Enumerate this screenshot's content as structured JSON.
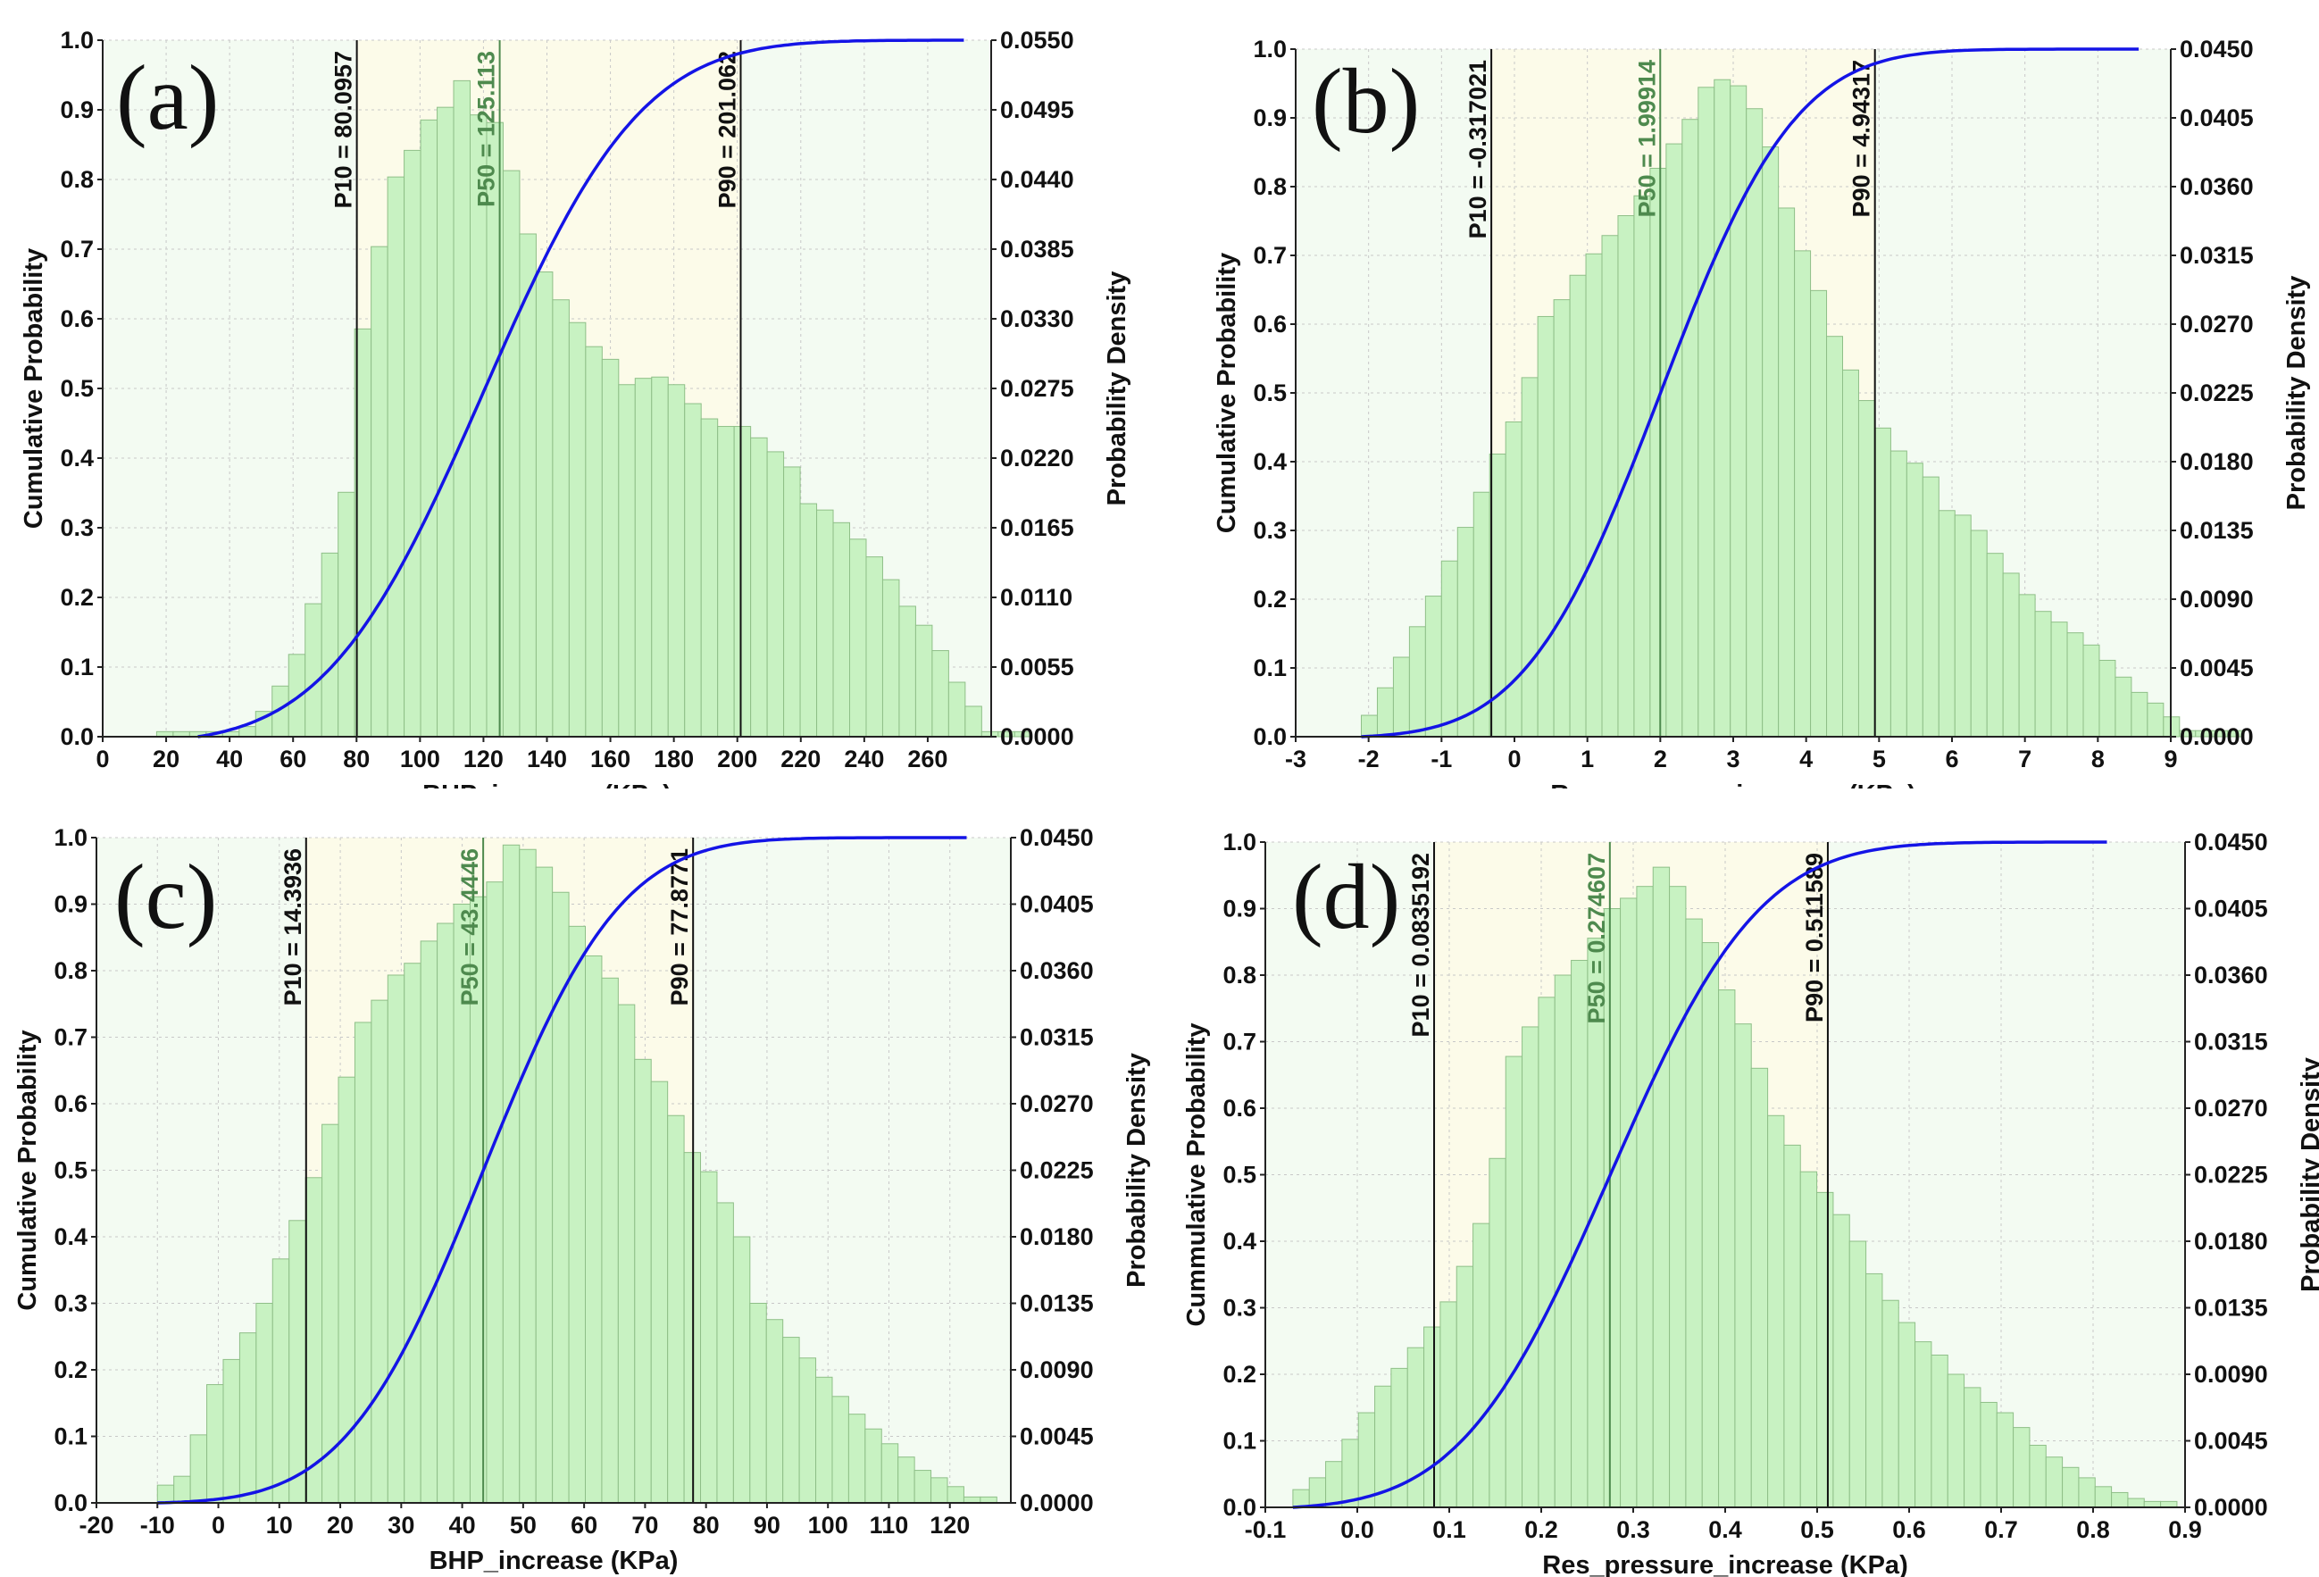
{
  "chart_data": [
    {
      "id": "a",
      "type": "bar",
      "panel_label": "(a)",
      "xlabel": "BHP_increase (KPa)",
      "ylabel_left": "Cumulative Probability",
      "ylabel_right": "Probability Density",
      "xlim": [
        0,
        280
      ],
      "x_ticks": [
        0,
        20,
        40,
        60,
        80,
        100,
        120,
        140,
        160,
        180,
        200,
        220,
        240,
        260
      ],
      "x_tick_labels": [
        "0",
        "20",
        "40",
        "60",
        "80",
        "100",
        "120",
        "140",
        "160",
        "180",
        "200",
        "220",
        "240",
        "260"
      ],
      "ylim_left": [
        0,
        1
      ],
      "y_left_tick_labels": [
        "0.0",
        "0.1",
        "0.2",
        "0.3",
        "0.4",
        "0.5",
        "0.6",
        "0.7",
        "0.8",
        "0.9",
        "1.0"
      ],
      "ylim_right": [
        0,
        0.055
      ],
      "y_right_tick_labels": [
        "0.0000",
        "0.0055",
        "0.0110",
        "0.0165",
        "0.0220",
        "0.0275",
        "0.0330",
        "0.0385",
        "0.0440",
        "0.0495",
        "0.0550"
      ],
      "bin_start": 17,
      "bin_width": 5.2,
      "bar_values": [
        0.0004,
        0.0004,
        0.0004,
        0.0004,
        0.0004,
        0.0008,
        0.002,
        0.004,
        0.0065,
        0.0105,
        0.0145,
        0.0193,
        0.0322,
        0.0387,
        0.0442,
        0.0463,
        0.0487,
        0.0497,
        0.0518,
        0.0491,
        0.0485,
        0.0447,
        0.0397,
        0.0367,
        0.0345,
        0.0327,
        0.0308,
        0.0298,
        0.0278,
        0.0283,
        0.0284,
        0.0278,
        0.0263,
        0.0251,
        0.0245,
        0.0245,
        0.0236,
        0.0225,
        0.0213,
        0.0184,
        0.0179,
        0.0169,
        0.0156,
        0.0142,
        0.0124,
        0.0103,
        0.0088,
        0.0068,
        0.0043,
        0.0024,
        0.0004,
        0.0004,
        0.0004
      ],
      "cdf": {
        "center": 120,
        "scale": 55,
        "x_start": 30,
        "x_end": 270
      },
      "reference_lines": [
        {
          "label": "P10 = 80.0957",
          "x": 80.0957,
          "color": "#111111"
        },
        {
          "label": "P50 = 125.113",
          "x": 125.113,
          "color": "#4e8a4e"
        },
        {
          "label": "P90 = 201.062",
          "x": 201.062,
          "color": "#111111"
        }
      ]
    },
    {
      "id": "b",
      "type": "bar",
      "panel_label": "(b)",
      "xlabel": "Res_pressure_increase (KPa)",
      "ylabel_left": "Cumulative Probability",
      "ylabel_right": "Probability Density",
      "xlim": [
        -3,
        9
      ],
      "x_ticks": [
        -3,
        -2,
        -1,
        0,
        1,
        2,
        3,
        4,
        5,
        6,
        7,
        8,
        9
      ],
      "x_tick_labels": [
        "-3",
        "-2",
        "-1",
        "0",
        "1",
        "2",
        "3",
        "4",
        "5",
        "6",
        "7",
        "8",
        "9"
      ],
      "ylim_left": [
        0,
        1
      ],
      "y_left_tick_labels": [
        "0.0",
        "0.1",
        "0.2",
        "0.3",
        "0.4",
        "0.5",
        "0.6",
        "0.7",
        "0.8",
        "0.9",
        "1.0"
      ],
      "ylim_right": [
        0,
        0.045
      ],
      "y_right_tick_labels": [
        "0.0000",
        "0.0045",
        "0.0090",
        "0.0135",
        "0.0180",
        "0.0225",
        "0.0270",
        "0.0315",
        "0.0360",
        "0.0405",
        "0.0450"
      ],
      "bin_start": -2.1,
      "bin_width": 0.22,
      "bar_values": [
        0.0014,
        0.0032,
        0.0052,
        0.0072,
        0.0092,
        0.0115,
        0.0137,
        0.016,
        0.0185,
        0.0206,
        0.0235,
        0.0275,
        0.0286,
        0.0302,
        0.0316,
        0.0328,
        0.0341,
        0.0354,
        0.0372,
        0.0388,
        0.0404,
        0.0425,
        0.043,
        0.0426,
        0.0411,
        0.0386,
        0.0346,
        0.0318,
        0.0292,
        0.0262,
        0.024,
        0.022,
        0.0202,
        0.0187,
        0.0179,
        0.017,
        0.0148,
        0.0145,
        0.0135,
        0.012,
        0.0107,
        0.0093,
        0.0082,
        0.0075,
        0.0068,
        0.006,
        0.005,
        0.0039,
        0.0029,
        0.0022,
        0.0013,
        0.0004,
        0.0004,
        0.0004,
        0.0004
      ],
      "cdf": {
        "center": 1.99914,
        "scale": 2.05,
        "x_start": -2.1,
        "x_end": 8.5
      },
      "reference_lines": [
        {
          "label": "P10 = -0.317021",
          "x": -0.317021,
          "color": "#111111"
        },
        {
          "label": "P50 = 1.99914",
          "x": 1.99914,
          "color": "#4e8a4e"
        },
        {
          "label": "P90 = 4.94317",
          "x": 4.94317,
          "color": "#111111"
        }
      ]
    },
    {
      "id": "c",
      "type": "bar",
      "panel_label": "(c)",
      "xlabel": "BHP_increase (KPa)",
      "ylabel_left": "Cumulative Probability",
      "ylabel_right": "Probability Density",
      "xlim": [
        -20,
        130
      ],
      "x_ticks": [
        -20,
        -10,
        0,
        10,
        20,
        30,
        40,
        50,
        60,
        70,
        80,
        90,
        100,
        110,
        120
      ],
      "x_tick_labels": [
        "-20",
        "-10",
        "0",
        "10",
        "20",
        "30",
        "40",
        "50",
        "60",
        "70",
        "80",
        "90",
        "100",
        "110",
        "120"
      ],
      "ylim_left": [
        0,
        1
      ],
      "y_left_tick_labels": [
        "0.0",
        "0.1",
        "0.2",
        "0.3",
        "0.4",
        "0.5",
        "0.6",
        "0.7",
        "0.8",
        "0.9",
        "1.0"
      ],
      "ylim_right": [
        0,
        0.045
      ],
      "y_right_tick_labels": [
        "0.0000",
        "0.0045",
        "0.0090",
        "0.0135",
        "0.0180",
        "0.0225",
        "0.0270",
        "0.0315",
        "0.0360",
        "0.0405",
        "0.0450"
      ],
      "bin_start": -10,
      "bin_width": 2.7,
      "bar_values": [
        0.0012,
        0.0018,
        0.0046,
        0.008,
        0.0097,
        0.0115,
        0.0135,
        0.0165,
        0.0191,
        0.022,
        0.0256,
        0.0288,
        0.0325,
        0.034,
        0.0357,
        0.0365,
        0.038,
        0.0392,
        0.0405,
        0.041,
        0.042,
        0.0445,
        0.0442,
        0.043,
        0.0413,
        0.039,
        0.037,
        0.0355,
        0.0337,
        0.03,
        0.0285,
        0.0262,
        0.0237,
        0.0224,
        0.0203,
        0.018,
        0.0135,
        0.0124,
        0.0112,
        0.0098,
        0.0085,
        0.0072,
        0.006,
        0.005,
        0.004,
        0.0031,
        0.0022,
        0.0017,
        0.0011,
        0.0004,
        0.0004
      ],
      "cdf": {
        "center": 43.4446,
        "scale": 25,
        "x_start": -10,
        "x_end": 122
      },
      "reference_lines": [
        {
          "label": "P10 = 14.3936",
          "x": 14.3936,
          "color": "#111111"
        },
        {
          "label": "P50 = 43.4446",
          "x": 43.4446,
          "color": "#4e8a4e"
        },
        {
          "label": "P90 = 77.8771",
          "x": 77.8771,
          "color": "#111111"
        }
      ]
    },
    {
      "id": "d",
      "type": "bar",
      "panel_label": "(d)",
      "xlabel": "Res_pressure_increase (KPa)",
      "ylabel_left": "Cummulative Probability",
      "ylabel_right": "Probability Density",
      "xlim": [
        -0.1,
        0.9
      ],
      "x_ticks": [
        -0.1,
        0,
        0.1,
        0.2,
        0.3,
        0.4,
        0.5,
        0.6,
        0.7,
        0.8,
        0.9
      ],
      "x_tick_labels": [
        "-0.1",
        "0.0",
        "0.1",
        "0.2",
        "0.3",
        "0.4",
        "0.5",
        "0.6",
        "0.7",
        "0.8",
        "0.9"
      ],
      "ylim_left": [
        0,
        1
      ],
      "y_left_tick_labels": [
        "0.0",
        "0.1",
        "0.2",
        "0.3",
        "0.4",
        "0.5",
        "0.6",
        "0.7",
        "0.8",
        "0.9",
        "1.0"
      ],
      "ylim_right": [
        0,
        0.045
      ],
      "y_right_tick_labels": [
        "0.0000",
        "0.0045",
        "0.0090",
        "0.0135",
        "0.0180",
        "0.0225",
        "0.0270",
        "0.0315",
        "0.0360",
        "0.0405",
        "0.0450"
      ],
      "bin_start": -0.07,
      "bin_width": 0.0178,
      "bar_values": [
        0.0012,
        0.002,
        0.0031,
        0.0046,
        0.0064,
        0.0082,
        0.0094,
        0.0108,
        0.0122,
        0.0139,
        0.0163,
        0.0192,
        0.0236,
        0.0305,
        0.0325,
        0.0345,
        0.036,
        0.037,
        0.0385,
        0.0405,
        0.0412,
        0.042,
        0.0433,
        0.042,
        0.0398,
        0.0382,
        0.035,
        0.0327,
        0.0297,
        0.0265,
        0.0245,
        0.0227,
        0.0213,
        0.0198,
        0.018,
        0.0158,
        0.014,
        0.0125,
        0.0112,
        0.0103,
        0.009,
        0.0081,
        0.0071,
        0.0064,
        0.0054,
        0.0042,
        0.0034,
        0.0027,
        0.002,
        0.0014,
        0.001,
        0.0006,
        0.0004,
        0.0004
      ],
      "cdf": {
        "center": 0.274607,
        "scale": 0.18,
        "x_start": -0.07,
        "x_end": 0.81
      },
      "reference_lines": [
        {
          "label": "P10 = 0.0835192",
          "x": 0.0835192,
          "color": "#111111"
        },
        {
          "label": "P50 = 0.274607",
          "x": 0.274607,
          "color": "#4e8a4e"
        },
        {
          "label": "P90 = 0.511589",
          "x": 0.511589,
          "color": "#111111"
        }
      ]
    }
  ],
  "colors": {
    "bar_fill": "#c8f2c2",
    "bar_stroke": "#8fbf88",
    "cdf_line": "#1414e6",
    "shade_outer": "#f3fbf2",
    "shade_inner": "#fcfbe9",
    "grid": "#c8c8c8"
  }
}
